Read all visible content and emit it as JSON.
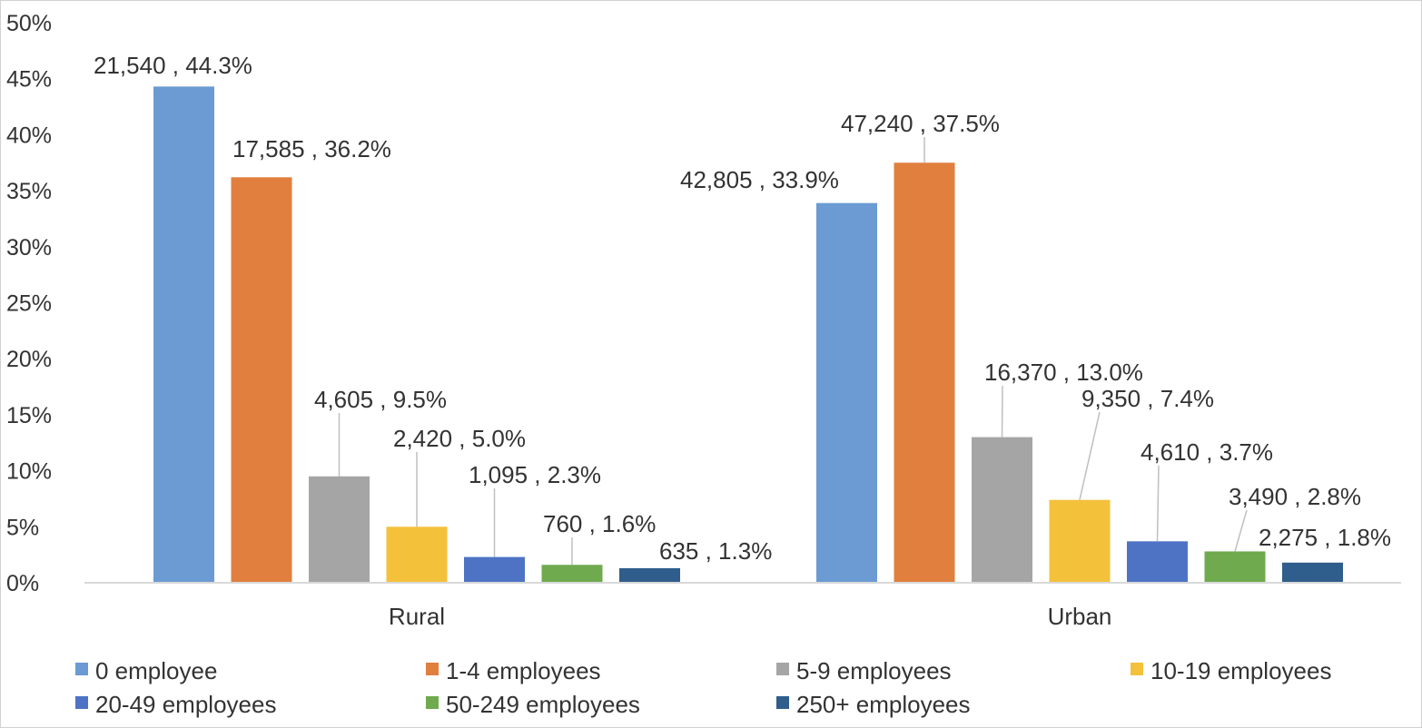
{
  "chart_data": {
    "type": "bar",
    "categories": [
      "Rural",
      "Urban"
    ],
    "ylim": [
      0,
      50
    ],
    "yticks": [
      "0%",
      "5%",
      "10%",
      "15%",
      "20%",
      "25%",
      "30%",
      "35%",
      "40%",
      "45%",
      "50%"
    ],
    "grid": false,
    "legend_position": "bottom",
    "series": [
      {
        "name": "0 employee",
        "color": "#6b9bd2",
        "values": [
          44.3,
          33.9
        ],
        "labels": [
          "21,540 , 44.3%",
          "42,805 , 33.9%"
        ]
      },
      {
        "name": "1-4 employees",
        "color": "#e07f3e",
        "values": [
          36.2,
          37.5
        ],
        "labels": [
          "17,585 , 36.2%",
          "47,240 , 37.5%"
        ]
      },
      {
        "name": "5-9 employees",
        "color": "#a5a5a5",
        "values": [
          9.5,
          13.0
        ],
        "labels": [
          "4,605 , 9.5%",
          "16,370 , 13.0%"
        ]
      },
      {
        "name": "10-19 employees",
        "color": "#f4c13b",
        "values": [
          5.0,
          7.4
        ],
        "labels": [
          "2,420 , 5.0%",
          "9,350 , 7.4%"
        ]
      },
      {
        "name": "20-49 employees",
        "color": "#4e73c4",
        "values": [
          2.3,
          3.7
        ],
        "labels": [
          "1,095 , 2.3%",
          "4,610 , 3.7%"
        ]
      },
      {
        "name": "50-249 employees",
        "color": "#6faa4e",
        "values": [
          1.6,
          2.8
        ],
        "labels": [
          "760 , 1.6%",
          "3,490 , 2.8%"
        ]
      },
      {
        "name": "250+ employees",
        "color": "#2f5d8c",
        "values": [
          1.3,
          1.8
        ],
        "labels": [
          "635 , 1.3%",
          "2,275 , 1.8%"
        ]
      }
    ]
  }
}
